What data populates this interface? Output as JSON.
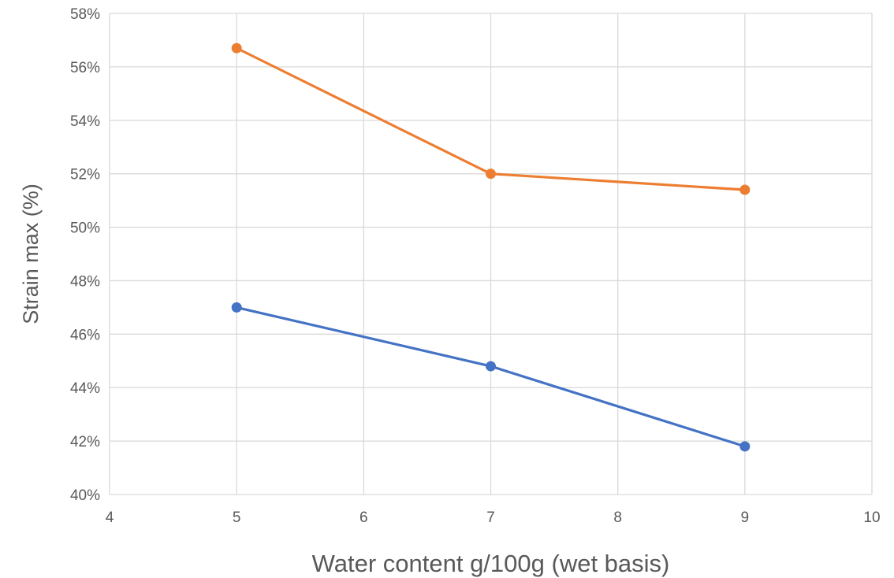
{
  "chart_data": {
    "type": "line",
    "xlabel": "Water content g/100g (wet basis)",
    "ylabel": "Strain max (%)",
    "xlim": [
      4,
      10
    ],
    "ylim": [
      0.4,
      0.58
    ],
    "x_ticks": [
      4,
      5,
      6,
      7,
      8,
      9,
      10
    ],
    "x_tick_labels": [
      "4",
      "5",
      "6",
      "7",
      "8",
      "9",
      "10"
    ],
    "y_ticks": [
      0.4,
      0.42,
      0.44,
      0.46,
      0.48,
      0.5,
      0.52,
      0.54,
      0.56,
      0.58
    ],
    "y_tick_labels": [
      "40%",
      "42%",
      "44%",
      "46%",
      "48%",
      "50%",
      "52%",
      "54%",
      "56%",
      "58%"
    ],
    "grid": true,
    "legend": "none",
    "series": [
      {
        "x": [
          5,
          7,
          9
        ],
        "y": [
          0.567,
          0.52,
          0.514
        ],
        "color": "#ED7D31"
      },
      {
        "x": [
          5,
          7,
          9
        ],
        "y": [
          0.47,
          0.448,
          0.418
        ],
        "color": "#4472C4"
      }
    ]
  }
}
